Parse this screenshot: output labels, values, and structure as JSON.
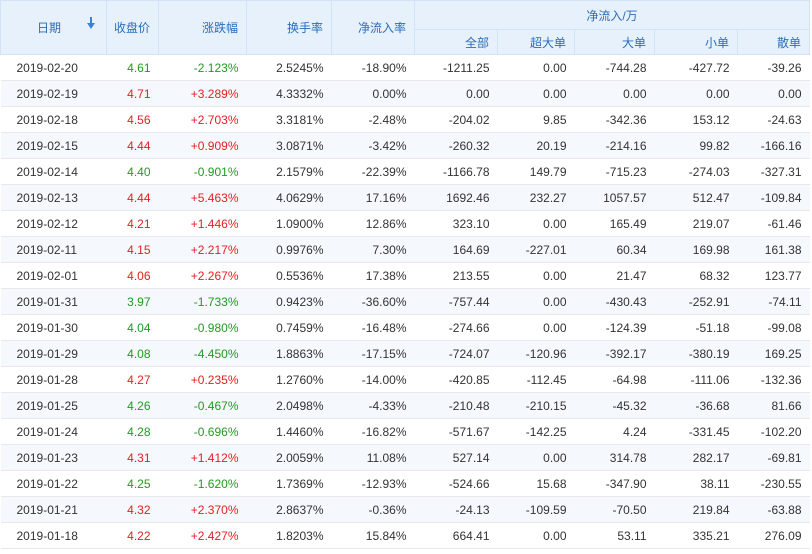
{
  "header": {
    "date": "日期",
    "close": "收盘价",
    "change": "涨跌幅",
    "turnover": "换手率",
    "net_ratio": "净流入率",
    "net_group": "净流入/万",
    "all": "全部",
    "super": "超大单",
    "large": "大单",
    "small": "小单",
    "retail": "散单"
  },
  "rows": [
    {
      "date": "2019-02-20",
      "close": "4.61",
      "change": "-2.123%",
      "turnover": "2.5245%",
      "ratio": "-18.90%",
      "all": "-1211.25",
      "super": "0.00",
      "large": "-744.28",
      "small": "-427.72",
      "retail": "-39.26",
      "dir": "down"
    },
    {
      "date": "2019-02-19",
      "close": "4.71",
      "change": "+3.289%",
      "turnover": "4.3332%",
      "ratio": "0.00%",
      "all": "0.00",
      "super": "0.00",
      "large": "0.00",
      "small": "0.00",
      "retail": "0.00",
      "dir": "up"
    },
    {
      "date": "2019-02-18",
      "close": "4.56",
      "change": "+2.703%",
      "turnover": "3.3181%",
      "ratio": "-2.48%",
      "all": "-204.02",
      "super": "9.85",
      "large": "-342.36",
      "small": "153.12",
      "retail": "-24.63",
      "dir": "up"
    },
    {
      "date": "2019-02-15",
      "close": "4.44",
      "change": "+0.909%",
      "turnover": "3.0871%",
      "ratio": "-3.42%",
      "all": "-260.32",
      "super": "20.19",
      "large": "-214.16",
      "small": "99.82",
      "retail": "-166.16",
      "dir": "up"
    },
    {
      "date": "2019-02-14",
      "close": "4.40",
      "change": "-0.901%",
      "turnover": "2.1579%",
      "ratio": "-22.39%",
      "all": "-1166.78",
      "super": "149.79",
      "large": "-715.23",
      "small": "-274.03",
      "retail": "-327.31",
      "dir": "down"
    },
    {
      "date": "2019-02-13",
      "close": "4.44",
      "change": "+5.463%",
      "turnover": "4.0629%",
      "ratio": "17.16%",
      "all": "1692.46",
      "super": "232.27",
      "large": "1057.57",
      "small": "512.47",
      "retail": "-109.84",
      "dir": "up"
    },
    {
      "date": "2019-02-12",
      "close": "4.21",
      "change": "+1.446%",
      "turnover": "1.0900%",
      "ratio": "12.86%",
      "all": "323.10",
      "super": "0.00",
      "large": "165.49",
      "small": "219.07",
      "retail": "-61.46",
      "dir": "up"
    },
    {
      "date": "2019-02-11",
      "close": "4.15",
      "change": "+2.217%",
      "turnover": "0.9976%",
      "ratio": "7.30%",
      "all": "164.69",
      "super": "-227.01",
      "large": "60.34",
      "small": "169.98",
      "retail": "161.38",
      "dir": "up"
    },
    {
      "date": "2019-02-01",
      "close": "4.06",
      "change": "+2.267%",
      "turnover": "0.5536%",
      "ratio": "17.38%",
      "all": "213.55",
      "super": "0.00",
      "large": "21.47",
      "small": "68.32",
      "retail": "123.77",
      "dir": "up"
    },
    {
      "date": "2019-01-31",
      "close": "3.97",
      "change": "-1.733%",
      "turnover": "0.9423%",
      "ratio": "-36.60%",
      "all": "-757.44",
      "super": "0.00",
      "large": "-430.43",
      "small": "-252.91",
      "retail": "-74.11",
      "dir": "down"
    },
    {
      "date": "2019-01-30",
      "close": "4.04",
      "change": "-0.980%",
      "turnover": "0.7459%",
      "ratio": "-16.48%",
      "all": "-274.66",
      "super": "0.00",
      "large": "-124.39",
      "small": "-51.18",
      "retail": "-99.08",
      "dir": "down"
    },
    {
      "date": "2019-01-29",
      "close": "4.08",
      "change": "-4.450%",
      "turnover": "1.8863%",
      "ratio": "-17.15%",
      "all": "-724.07",
      "super": "-120.96",
      "large": "-392.17",
      "small": "-380.19",
      "retail": "169.25",
      "dir": "down"
    },
    {
      "date": "2019-01-28",
      "close": "4.27",
      "change": "+0.235%",
      "turnover": "1.2760%",
      "ratio": "-14.00%",
      "all": "-420.85",
      "super": "-112.45",
      "large": "-64.98",
      "small": "-111.06",
      "retail": "-132.36",
      "dir": "up"
    },
    {
      "date": "2019-01-25",
      "close": "4.26",
      "change": "-0.467%",
      "turnover": "2.0498%",
      "ratio": "-4.33%",
      "all": "-210.48",
      "super": "-210.15",
      "large": "-45.32",
      "small": "-36.68",
      "retail": "81.66",
      "dir": "down"
    },
    {
      "date": "2019-01-24",
      "close": "4.28",
      "change": "-0.696%",
      "turnover": "1.4460%",
      "ratio": "-16.82%",
      "all": "-571.67",
      "super": "-142.25",
      "large": "4.24",
      "small": "-331.45",
      "retail": "-102.20",
      "dir": "down"
    },
    {
      "date": "2019-01-23",
      "close": "4.31",
      "change": "+1.412%",
      "turnover": "2.0059%",
      "ratio": "11.08%",
      "all": "527.14",
      "super": "0.00",
      "large": "314.78",
      "small": "282.17",
      "retail": "-69.81",
      "dir": "up"
    },
    {
      "date": "2019-01-22",
      "close": "4.25",
      "change": "-1.620%",
      "turnover": "1.7369%",
      "ratio": "-12.93%",
      "all": "-524.66",
      "super": "15.68",
      "large": "-347.90",
      "small": "38.11",
      "retail": "-230.55",
      "dir": "down"
    },
    {
      "date": "2019-01-21",
      "close": "4.32",
      "change": "+2.370%",
      "turnover": "2.8637%",
      "ratio": "-0.36%",
      "all": "-24.13",
      "super": "-109.59",
      "large": "-70.50",
      "small": "219.84",
      "retail": "-63.88",
      "dir": "up"
    },
    {
      "date": "2019-01-18",
      "close": "4.22",
      "change": "+2.427%",
      "turnover": "1.8203%",
      "ratio": "15.84%",
      "all": "664.41",
      "super": "0.00",
      "large": "53.11",
      "small": "335.21",
      "retail": "276.09",
      "dir": "up"
    }
  ],
  "colors": {
    "up": "#e02222",
    "down": "#229922",
    "header_bg": "#e7f1fc",
    "header_text": "#2a6dbb"
  },
  "icons": {
    "sort": "sort-down-arrow-icon"
  }
}
